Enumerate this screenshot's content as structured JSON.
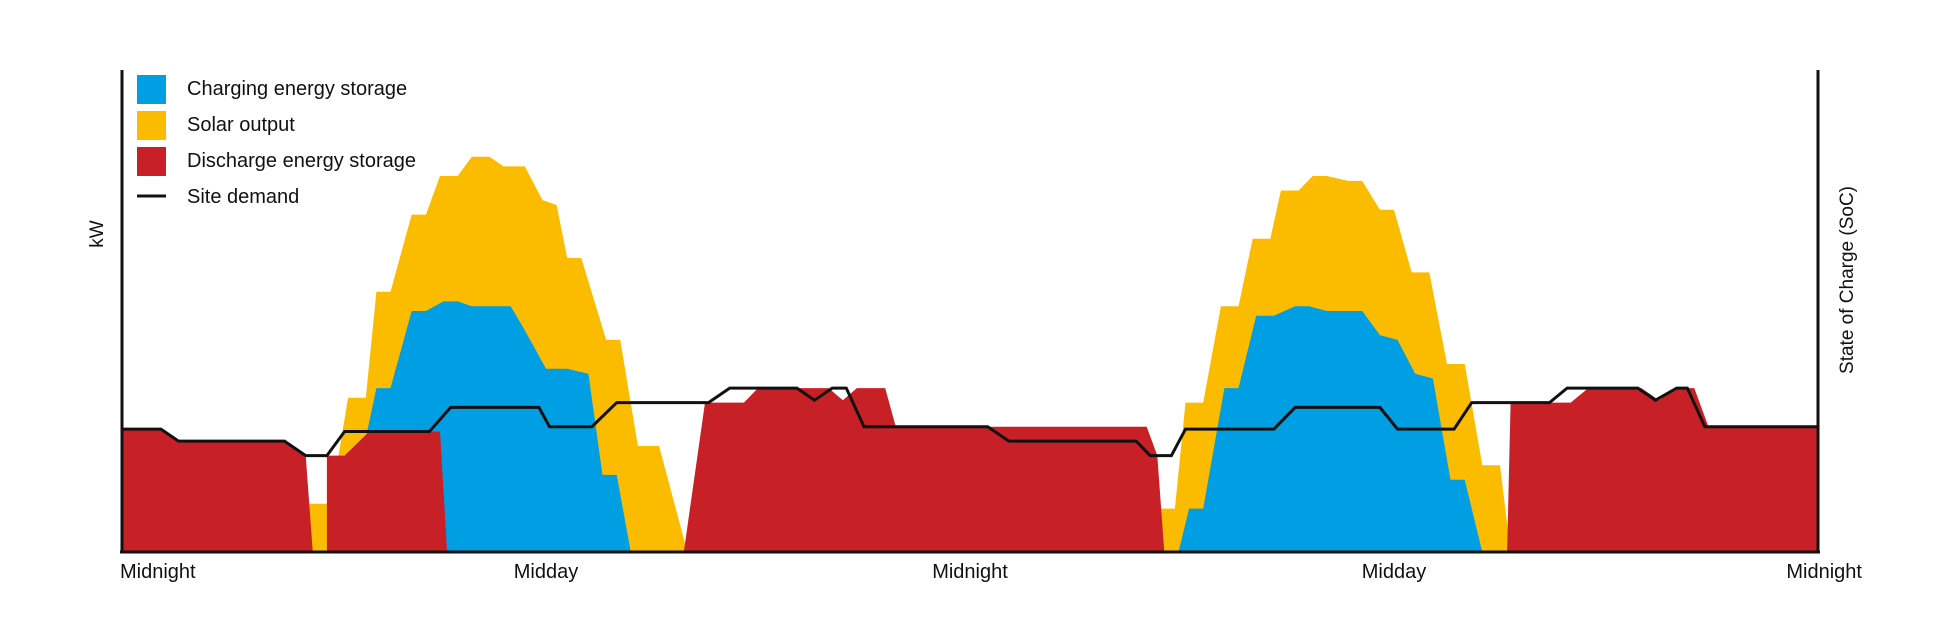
{
  "chart_data": {
    "type": "area",
    "title": "",
    "ylabel": "kW",
    "y2label": "State of Charge (SoC)",
    "xlabel": "",
    "x_domain": [
      0,
      48
    ],
    "ylim": [
      0,
      100
    ],
    "x_ticks": [
      {
        "x": 0,
        "label": "Midnight"
      },
      {
        "x": 12,
        "label": "Midday"
      },
      {
        "x": 24,
        "label": "Midnight"
      },
      {
        "x": 36,
        "label": "Midday"
      },
      {
        "x": 48,
        "label": "Midnight"
      }
    ],
    "legend": {
      "placement": "top-left"
    },
    "series": [
      {
        "name": "Solar output",
        "color": "#fbbc00",
        "kind": "area",
        "points": [
          [
            5.0,
            0
          ],
          [
            5.0,
            8
          ],
          [
            5.3,
            8
          ],
          [
            5.3,
            10
          ],
          [
            5.9,
            10
          ],
          [
            6.4,
            32
          ],
          [
            6.9,
            32
          ],
          [
            7.2,
            54
          ],
          [
            7.6,
            54
          ],
          [
            8.2,
            70
          ],
          [
            8.6,
            70
          ],
          [
            9.0,
            78
          ],
          [
            9.5,
            78
          ],
          [
            9.9,
            82
          ],
          [
            10.4,
            82
          ],
          [
            10.8,
            80
          ],
          [
            11.4,
            80
          ],
          [
            11.9,
            73
          ],
          [
            12.3,
            72
          ],
          [
            12.6,
            61
          ],
          [
            13.0,
            61
          ],
          [
            13.7,
            44
          ],
          [
            14.1,
            44
          ],
          [
            14.6,
            22
          ],
          [
            15.2,
            22
          ],
          [
            16.0,
            0
          ],
          [
            29.1,
            0
          ],
          [
            29.4,
            9
          ],
          [
            29.8,
            9
          ],
          [
            30.1,
            31
          ],
          [
            30.6,
            31
          ],
          [
            31.1,
            51
          ],
          [
            31.6,
            51
          ],
          [
            32.0,
            65
          ],
          [
            32.5,
            65
          ],
          [
            32.8,
            75
          ],
          [
            33.3,
            75
          ],
          [
            33.7,
            78
          ],
          [
            34.1,
            78
          ],
          [
            34.7,
            77
          ],
          [
            35.1,
            77
          ],
          [
            35.6,
            71
          ],
          [
            36.0,
            71
          ],
          [
            36.5,
            58
          ],
          [
            37.0,
            58
          ],
          [
            37.5,
            39
          ],
          [
            38.0,
            39
          ],
          [
            38.5,
            18
          ],
          [
            39.0,
            18
          ],
          [
            39.3,
            0
          ]
        ]
      },
      {
        "name": "Charging energy storage",
        "color": "#009fe3",
        "kind": "area",
        "points": [
          [
            5.8,
            0
          ],
          [
            6.1,
            10
          ],
          [
            6.5,
            10
          ],
          [
            7.2,
            34
          ],
          [
            7.6,
            34
          ],
          [
            8.2,
            50
          ],
          [
            8.6,
            50
          ],
          [
            9.1,
            52
          ],
          [
            9.5,
            52
          ],
          [
            9.9,
            51
          ],
          [
            10.4,
            51
          ],
          [
            11.0,
            51
          ],
          [
            11.4,
            46
          ],
          [
            12.0,
            38
          ],
          [
            12.6,
            38
          ],
          [
            13.2,
            37
          ],
          [
            13.6,
            16
          ],
          [
            14.0,
            16
          ],
          [
            14.4,
            0
          ],
          [
            29.9,
            0
          ],
          [
            30.2,
            9
          ],
          [
            30.6,
            9
          ],
          [
            31.2,
            34
          ],
          [
            31.6,
            34
          ],
          [
            32.1,
            49
          ],
          [
            32.6,
            49
          ],
          [
            33.2,
            51
          ],
          [
            33.6,
            51
          ],
          [
            34.1,
            50
          ],
          [
            34.6,
            50
          ],
          [
            35.1,
            50
          ],
          [
            35.6,
            45
          ],
          [
            36.1,
            44
          ],
          [
            36.6,
            37
          ],
          [
            37.1,
            36
          ],
          [
            37.6,
            15
          ],
          [
            38.0,
            15
          ],
          [
            38.5,
            0
          ]
        ]
      },
      {
        "name": "Discharge energy storage",
        "color": "#c82027",
        "kind": "area",
        "points": [
          [
            0,
            0
          ],
          [
            0,
            25.5
          ],
          [
            1.1,
            25.5
          ],
          [
            1.6,
            23
          ],
          [
            4.6,
            23
          ],
          [
            5.2,
            20
          ],
          [
            5.4,
            0
          ],
          [
            5.8,
            0
          ],
          [
            5.8,
            20
          ],
          [
            6.3,
            20
          ],
          [
            7.0,
            25
          ],
          [
            9.0,
            25
          ],
          [
            9.2,
            0
          ],
          [
            15.9,
            0
          ],
          [
            16.5,
            31
          ],
          [
            16.9,
            31
          ],
          [
            17.3,
            31
          ],
          [
            17.6,
            31
          ],
          [
            18.0,
            34
          ],
          [
            19.1,
            34
          ],
          [
            20.0,
            34
          ],
          [
            20.4,
            31.5
          ],
          [
            20.8,
            34
          ],
          [
            21.6,
            34
          ],
          [
            21.9,
            26
          ],
          [
            29.0,
            26
          ],
          [
            29.3,
            20
          ],
          [
            29.5,
            0
          ],
          [
            39.2,
            0
          ],
          [
            39.3,
            31
          ],
          [
            40.0,
            31
          ],
          [
            41.0,
            31
          ],
          [
            41.5,
            34
          ],
          [
            42.4,
            34
          ],
          [
            43.0,
            34
          ],
          [
            43.5,
            31.5
          ],
          [
            44.0,
            34
          ],
          [
            44.5,
            34
          ],
          [
            44.9,
            26
          ],
          [
            48,
            26
          ],
          [
            48,
            0
          ]
        ]
      },
      {
        "name": "Site demand",
        "color": "#111111",
        "kind": "line",
        "points": [
          [
            0,
            25.5
          ],
          [
            1.1,
            25.5
          ],
          [
            1.6,
            23
          ],
          [
            4.6,
            23
          ],
          [
            5.2,
            20
          ],
          [
            5.8,
            20
          ],
          [
            6.3,
            25
          ],
          [
            8.7,
            25
          ],
          [
            9.3,
            30
          ],
          [
            11.8,
            30
          ],
          [
            12.1,
            26
          ],
          [
            13.3,
            26
          ],
          [
            14.0,
            31
          ],
          [
            16.6,
            31
          ],
          [
            17.2,
            34
          ],
          [
            19.1,
            34
          ],
          [
            19.6,
            31.5
          ],
          [
            20.1,
            34
          ],
          [
            20.5,
            34
          ],
          [
            21.0,
            26
          ],
          [
            24.5,
            26
          ],
          [
            25.1,
            23
          ],
          [
            28.7,
            23
          ],
          [
            29.1,
            20
          ],
          [
            29.7,
            20
          ],
          [
            30.1,
            25.5
          ],
          [
            32.6,
            25.5
          ],
          [
            33.2,
            30
          ],
          [
            35.6,
            30
          ],
          [
            36.1,
            25.5
          ],
          [
            37.7,
            25.5
          ],
          [
            38.2,
            31
          ],
          [
            40.4,
            31
          ],
          [
            40.9,
            34
          ],
          [
            42.9,
            34
          ],
          [
            43.4,
            31.5
          ],
          [
            44.0,
            34
          ],
          [
            44.3,
            34
          ],
          [
            44.8,
            26
          ],
          [
            48,
            26
          ]
        ]
      }
    ],
    "legend_entries": [
      {
        "label": "Charging energy storage",
        "color": "#009fe3",
        "symbol": "square"
      },
      {
        "label": "Solar output",
        "color": "#fbbc00",
        "symbol": "square"
      },
      {
        "label": "Discharge energy storage",
        "color": "#c82027",
        "symbol": "square"
      },
      {
        "label": "Site demand",
        "color": "#111111",
        "symbol": "line"
      }
    ]
  }
}
